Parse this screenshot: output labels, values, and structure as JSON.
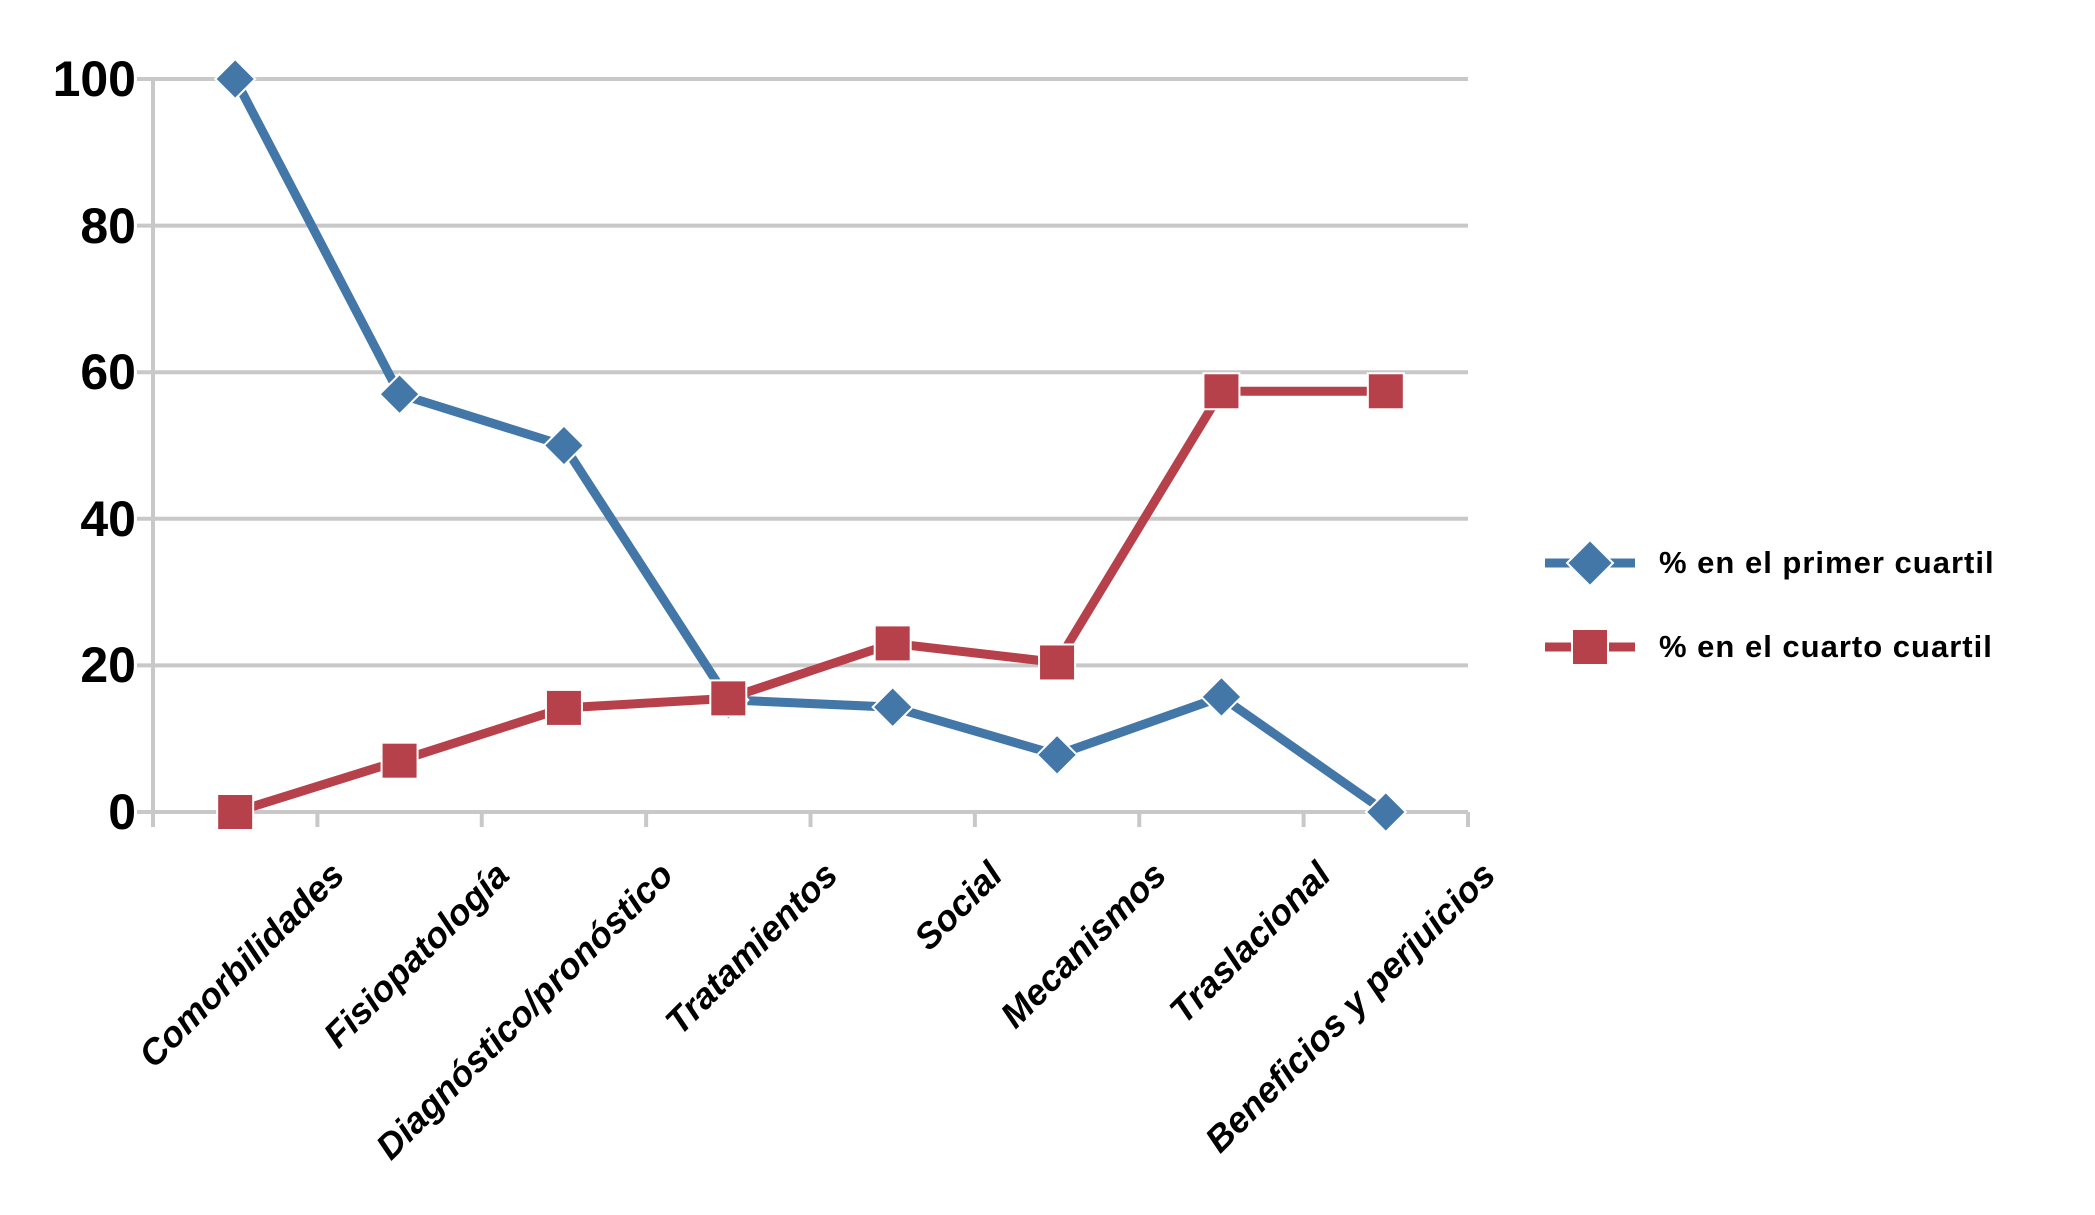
{
  "chart_data": {
    "type": "line",
    "categories": [
      "Comorbilidades",
      "Fisiopatología",
      "Diagnóstico/pronóstico",
      "Tratamientos",
      "Social",
      "Mecanismos",
      "Traslacional",
      "Beneficios y perjuicios"
    ],
    "series": [
      {
        "name": "% en el primer cuartil",
        "marker": "diamond",
        "color": "#4277A7",
        "values": [
          100,
          57,
          50,
          15.3,
          14.3,
          7.8,
          15.7,
          0
        ]
      },
      {
        "name": "% en el cuarto cuartil",
        "marker": "square",
        "color": "#B6414B",
        "values": [
          0,
          7,
          14.2,
          15.5,
          23,
          20.4,
          57.4,
          57.4
        ]
      }
    ],
    "yticks": [
      0,
      20,
      40,
      60,
      80,
      100
    ],
    "ylim": [
      0,
      100
    ],
    "title": "",
    "xlabel": "",
    "ylabel": "",
    "grid": true,
    "legend_position": "right",
    "gridline_color": "#C8C8C8",
    "axis_color": "#C8C8C8",
    "text_color": "#000000",
    "marker_outline_color": "#FFFFFF"
  }
}
